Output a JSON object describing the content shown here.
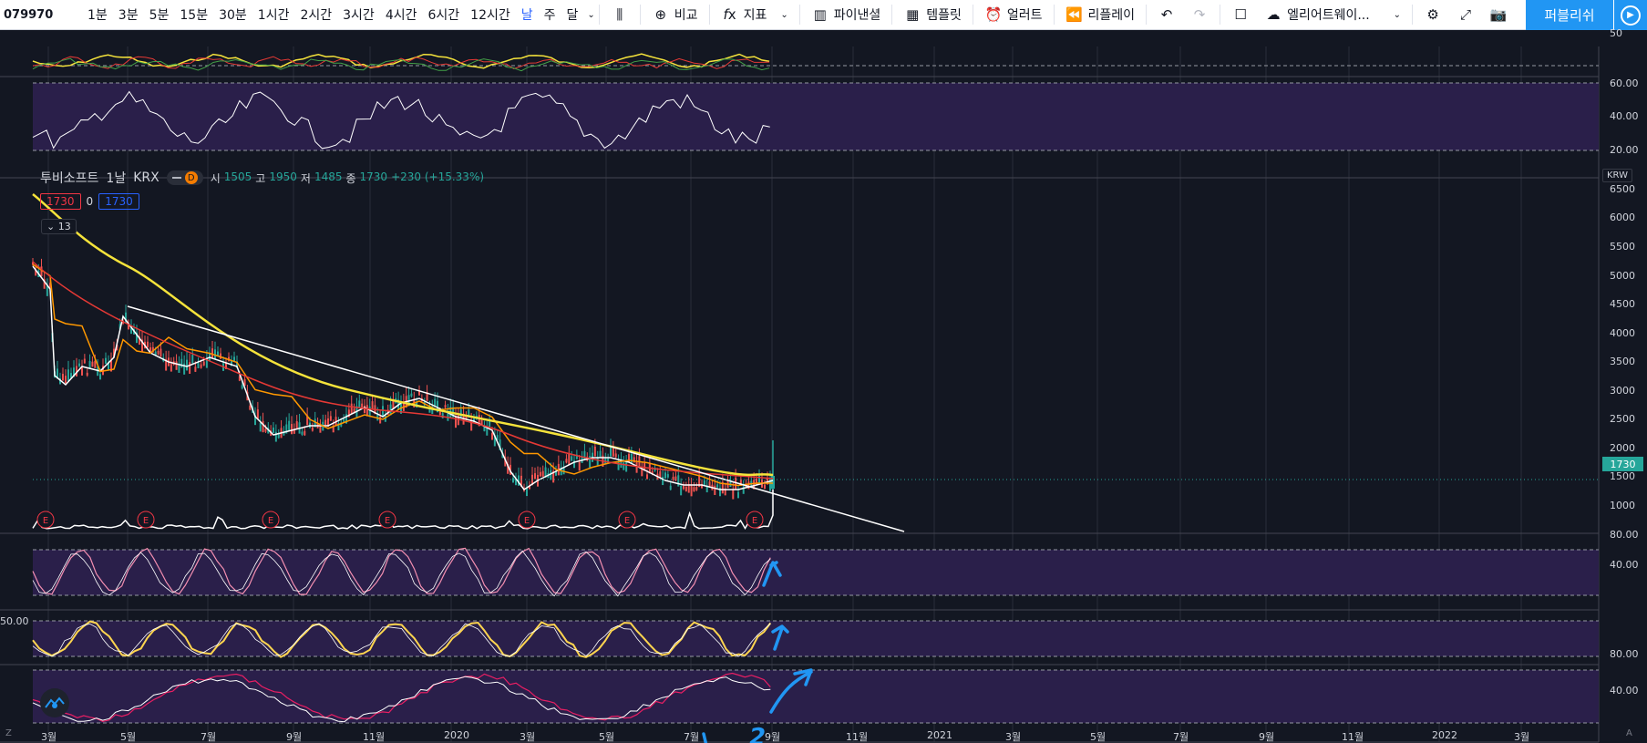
{
  "toolbar": {
    "symbol": "079970",
    "intervals": [
      "1분",
      "3분",
      "5분",
      "15분",
      "30분",
      "1시간",
      "2시간",
      "3시간",
      "4시간",
      "6시간",
      "12시간",
      "날",
      "주",
      "달"
    ],
    "active_interval": "날",
    "compare_label": "비교",
    "indicators_label": "지표",
    "financials_label": "파이낸셜",
    "templates_label": "템플릿",
    "alert_label": "얼러트",
    "replay_label": "리플레이",
    "layout_label": "엘리어트웨이...",
    "publish_label": "퍼블리쉬"
  },
  "legend": {
    "name": "투비소프트",
    "interval": "1날",
    "exchange": "KRX",
    "badge": "D",
    "o_label": "시",
    "o": "1505",
    "h_label": "고",
    "h": "1950",
    "l_label": "저",
    "l": "1485",
    "c_label": "종",
    "c": "1730",
    "change": "+230 (+15.33%)",
    "bid": "1730",
    "spread": "0",
    "ask": "1730",
    "collapsed_count": "13"
  },
  "price_axis": {
    "currency": "KRW",
    "labels": [
      "6500",
      "6000",
      "5500",
      "5000",
      "4500",
      "4000",
      "3500",
      "3000",
      "2500",
      "2000",
      "1500",
      "1000"
    ],
    "last_price": "1730"
  },
  "pane_axes": {
    "top": [
      "50"
    ],
    "rsi": [
      "60.00",
      "40.00",
      "20.00"
    ],
    "stoch1": [
      "80.00",
      "40.00"
    ],
    "stoch2_left": "50.00",
    "stoch3": [
      "80.00",
      "40.00"
    ]
  },
  "time_axis": [
    "3월",
    "5월",
    "7월",
    "9월",
    "11월",
    "2020",
    "3월",
    "5월",
    "7월",
    "9월",
    "11월",
    "2021",
    "3월",
    "5월",
    "7월",
    "9월",
    "11월",
    "2022",
    "3월"
  ],
  "earnings_marker": "E",
  "bottom_left": "Z",
  "bottom_right": "A",
  "annotations": [
    "1",
    "2"
  ],
  "colors": {
    "background": "#131722",
    "pane_fill": "#2a1f4a",
    "up": "#26a69a",
    "down": "#ef5350",
    "sma_yellow": "#f5e33b",
    "ema_orange": "#ff9800",
    "ema_red": "#e53935",
    "trendline": "#ffffff",
    "pen": "#2196f3"
  }
}
